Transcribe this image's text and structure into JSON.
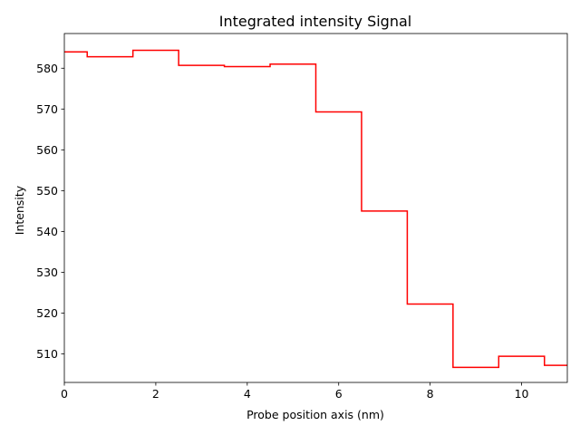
{
  "chart_data": {
    "type": "line",
    "style": "step-mid",
    "title": "Integrated intensity Signal",
    "xlabel": "Probe position axis (nm)",
    "ylabel": "Intensity",
    "xlim": [
      0,
      11
    ],
    "ylim": [
      503,
      588.5
    ],
    "x_ticks": [
      0,
      2,
      4,
      6,
      8,
      10
    ],
    "y_ticks": [
      510,
      520,
      530,
      540,
      550,
      560,
      570,
      580
    ],
    "grid": false,
    "line_color": "#ff0000",
    "series": [
      {
        "x": [
          0,
          1,
          2,
          3,
          4,
          5,
          6,
          7,
          8,
          9,
          10,
          11
        ],
        "values": [
          584.0,
          582.8,
          584.4,
          580.7,
          580.4,
          581.0,
          569.3,
          545.0,
          522.2,
          506.7,
          509.4,
          507.2
        ]
      }
    ]
  }
}
